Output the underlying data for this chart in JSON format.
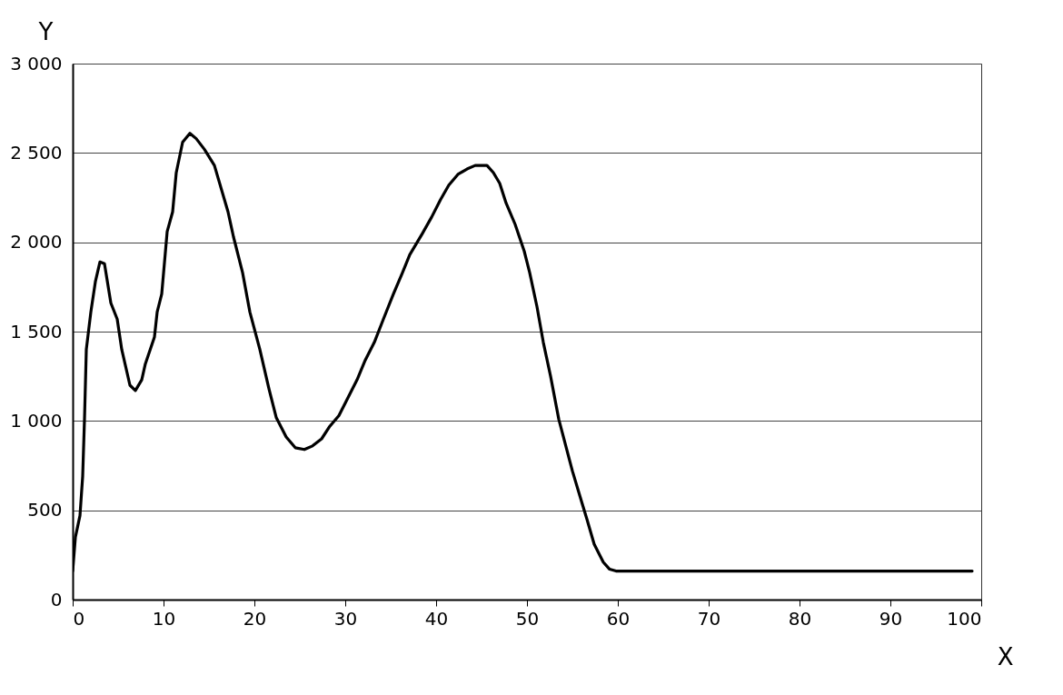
{
  "chart_data": {
    "type": "line",
    "xlabel": "X",
    "ylabel": "Y",
    "xlim": [
      0,
      100
    ],
    "xticks": [
      0,
      10,
      20,
      30,
      40,
      50,
      60,
      70,
      80,
      90,
      100
    ],
    "ylim": [
      0,
      3000
    ],
    "yticks": [
      0,
      500,
      {
        "value": 1000,
        "label": "1 000"
      },
      {
        "value": 1500,
        "label": "1 500"
      },
      {
        "value": 2000,
        "label": "2 000"
      },
      {
        "value": 2500,
        "label": "2 500"
      },
      {
        "value": 3000,
        "label": "3 000"
      }
    ],
    "grid": "y",
    "marker": "none",
    "line_style": "solid",
    "series": [
      {
        "color": "#000000",
        "x": [
          0,
          0.3,
          0.8,
          1.1,
          1.3,
          1.5,
          2,
          2.5,
          3,
          3.5,
          4.2,
          4.9,
          5.4,
          6.3,
          6.9,
          7.6,
          8,
          9,
          9.3,
          9.8,
          10.4,
          11,
          11.4,
          12.1,
          12.9,
          13.6,
          14.5,
          15.6,
          17.1,
          17.7,
          18.7,
          19.5,
          20.6,
          21.6,
          22.4,
          23.5,
          24.5,
          25.5,
          26.4,
          27.4,
          28.3,
          29.3,
          30.3,
          31.3,
          32.2,
          33.2,
          34.2,
          35.3,
          36.3,
          37.1,
          38.5,
          39.5,
          40.5,
          41.4,
          42.4,
          43.4,
          44.3,
          45.6,
          46.3,
          47,
          47.7,
          48.7,
          49.7,
          50.3,
          51.1,
          51.8,
          52.6,
          53.5,
          55,
          56,
          56.6,
          57.4,
          58.4,
          59.1,
          59.8,
          70,
          80,
          90,
          99
        ],
        "values": [
          160,
          350,
          470,
          690,
          1010,
          1400,
          1610,
          1780,
          1890,
          1880,
          1660,
          1570,
          1400,
          1200,
          1170,
          1230,
          1320,
          1470,
          1610,
          1710,
          2060,
          2170,
          2390,
          2560,
          2610,
          2580,
          2520,
          2430,
          2170,
          2030,
          1830,
          1610,
          1400,
          1180,
          1020,
          910,
          850,
          840,
          860,
          900,
          970,
          1030,
          1130,
          1230,
          1340,
          1440,
          1570,
          1710,
          1830,
          1930,
          2050,
          2140,
          2240,
          2320,
          2380,
          2410,
          2430,
          2430,
          2390,
          2330,
          2220,
          2100,
          1950,
          1830,
          1640,
          1440,
          1250,
          1010,
          720,
          550,
          450,
          310,
          210,
          170,
          160,
          160,
          160,
          160,
          160
        ]
      }
    ]
  }
}
